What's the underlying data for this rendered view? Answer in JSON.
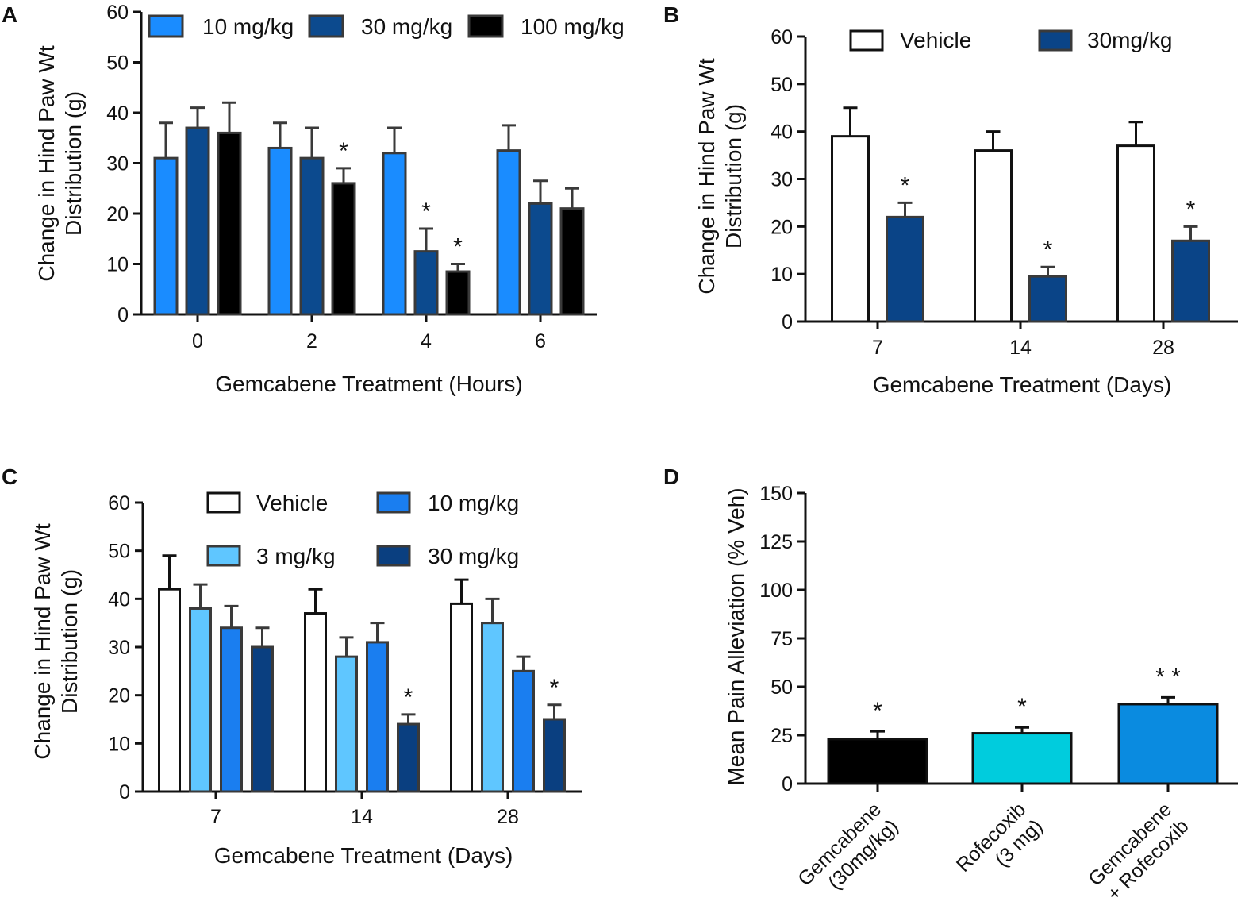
{
  "figure": {
    "panels": [
      "A",
      "B",
      "C",
      "D"
    ]
  },
  "chart_data": [
    {
      "id": "A",
      "type": "bar",
      "panel_label": "A",
      "title": "",
      "xlabel": "Gemcabene Treatment (Hours)",
      "ylabel": [
        "Change in Hind Paw Wt",
        "Distribution (g)"
      ],
      "ylim": [
        0,
        60
      ],
      "yticks": [
        "0",
        "10",
        "20",
        "30",
        "40",
        "50",
        "60"
      ],
      "categories": [
        "0",
        "2",
        "4",
        "6"
      ],
      "legend_position": "top",
      "series": [
        {
          "name": "10 mg/kg",
          "color": "#1a8cff",
          "values": [
            31,
            33,
            32,
            32.5
          ],
          "errors": [
            7,
            5,
            5,
            5
          ],
          "stars": [
            "",
            "",
            "",
            ""
          ]
        },
        {
          "name": "30 mg/kg",
          "color": "#0c4a8e",
          "values": [
            37,
            31,
            12.5,
            22
          ],
          "errors": [
            4,
            6,
            4.5,
            4.5
          ],
          "stars": [
            "",
            "",
            "*",
            ""
          ]
        },
        {
          "name": "100 mg/kg",
          "color": "#000000",
          "values": [
            36,
            26,
            8.5,
            21
          ],
          "errors": [
            6,
            3,
            1.5,
            4
          ],
          "stars": [
            "",
            "*",
            "*",
            ""
          ]
        }
      ]
    },
    {
      "id": "B",
      "type": "bar",
      "panel_label": "B",
      "title": "",
      "xlabel": "Gemcabene Treatment (Days)",
      "ylabel": [
        "Change in Hind Paw Wt",
        "Distribution (g)"
      ],
      "ylim": [
        0,
        60
      ],
      "yticks": [
        "0",
        "10",
        "20",
        "30",
        "40",
        "50",
        "60"
      ],
      "categories": [
        "7",
        "14",
        "28"
      ],
      "legend_position": "top",
      "series": [
        {
          "name": "Vehicle",
          "color": "#ffffff",
          "values": [
            39,
            36,
            37
          ],
          "errors": [
            6,
            4,
            5
          ],
          "stars": [
            "",
            "",
            ""
          ]
        },
        {
          "name": "30mg/kg",
          "color": "#0a4487",
          "values": [
            22,
            9.5,
            17
          ],
          "errors": [
            3,
            2,
            3
          ],
          "stars": [
            "*",
            "*",
            "*"
          ]
        }
      ]
    },
    {
      "id": "C",
      "type": "bar",
      "panel_label": "C",
      "title": "",
      "xlabel": "Gemcabene Treatment (Days)",
      "ylabel": [
        "Change in Hind Paw Wt",
        "Distribution (g)"
      ],
      "ylim": [
        0,
        60
      ],
      "yticks": [
        "0",
        "10",
        "20",
        "30",
        "40",
        "50",
        "60"
      ],
      "categories": [
        "7",
        "14",
        "28"
      ],
      "legend_position": "top",
      "series": [
        {
          "name": "Vehicle",
          "color": "#ffffff",
          "values": [
            42,
            37,
            39
          ],
          "errors": [
            7,
            5,
            5
          ],
          "stars": [
            "",
            "",
            ""
          ]
        },
        {
          "name": "3 mg/kg",
          "color": "#5fc6ff",
          "values": [
            38,
            28,
            35
          ],
          "errors": [
            5,
            4,
            5
          ],
          "stars": [
            "",
            "",
            ""
          ]
        },
        {
          "name": "10 mg/kg",
          "color": "#1a7ef0",
          "values": [
            34,
            31,
            25
          ],
          "errors": [
            4.5,
            4,
            3
          ],
          "stars": [
            "",
            "",
            ""
          ]
        },
        {
          "name": "30 mg/kg",
          "color": "#0a3f80",
          "values": [
            30,
            14,
            15
          ],
          "errors": [
            4,
            2,
            3
          ],
          "stars": [
            "",
            "*",
            "*"
          ]
        }
      ]
    },
    {
      "id": "D",
      "type": "bar",
      "panel_label": "D",
      "title": "",
      "xlabel": "",
      "ylabel": [
        "Mean Pain Alleviation (% Veh)"
      ],
      "ylim": [
        0,
        150
      ],
      "yticks": [
        "0",
        "25",
        "50",
        "75",
        "100",
        "125",
        "150"
      ],
      "categories": [
        [
          "Gemcabene",
          "(30mg/kg)"
        ],
        [
          "Rofecoxib",
          "(3 mg)"
        ],
        [
          "Gemcabene",
          "+ Rofecoxib"
        ]
      ],
      "legend_position": "none",
      "series": [
        {
          "name": "Mean Pain Alleviation",
          "colors": [
            "#000000",
            "#00ccdd",
            "#0a8be0"
          ],
          "values": [
            23,
            26,
            41
          ],
          "errors": [
            4,
            3,
            3.5
          ],
          "stars": [
            "*",
            "*",
            "* *"
          ]
        }
      ]
    }
  ]
}
